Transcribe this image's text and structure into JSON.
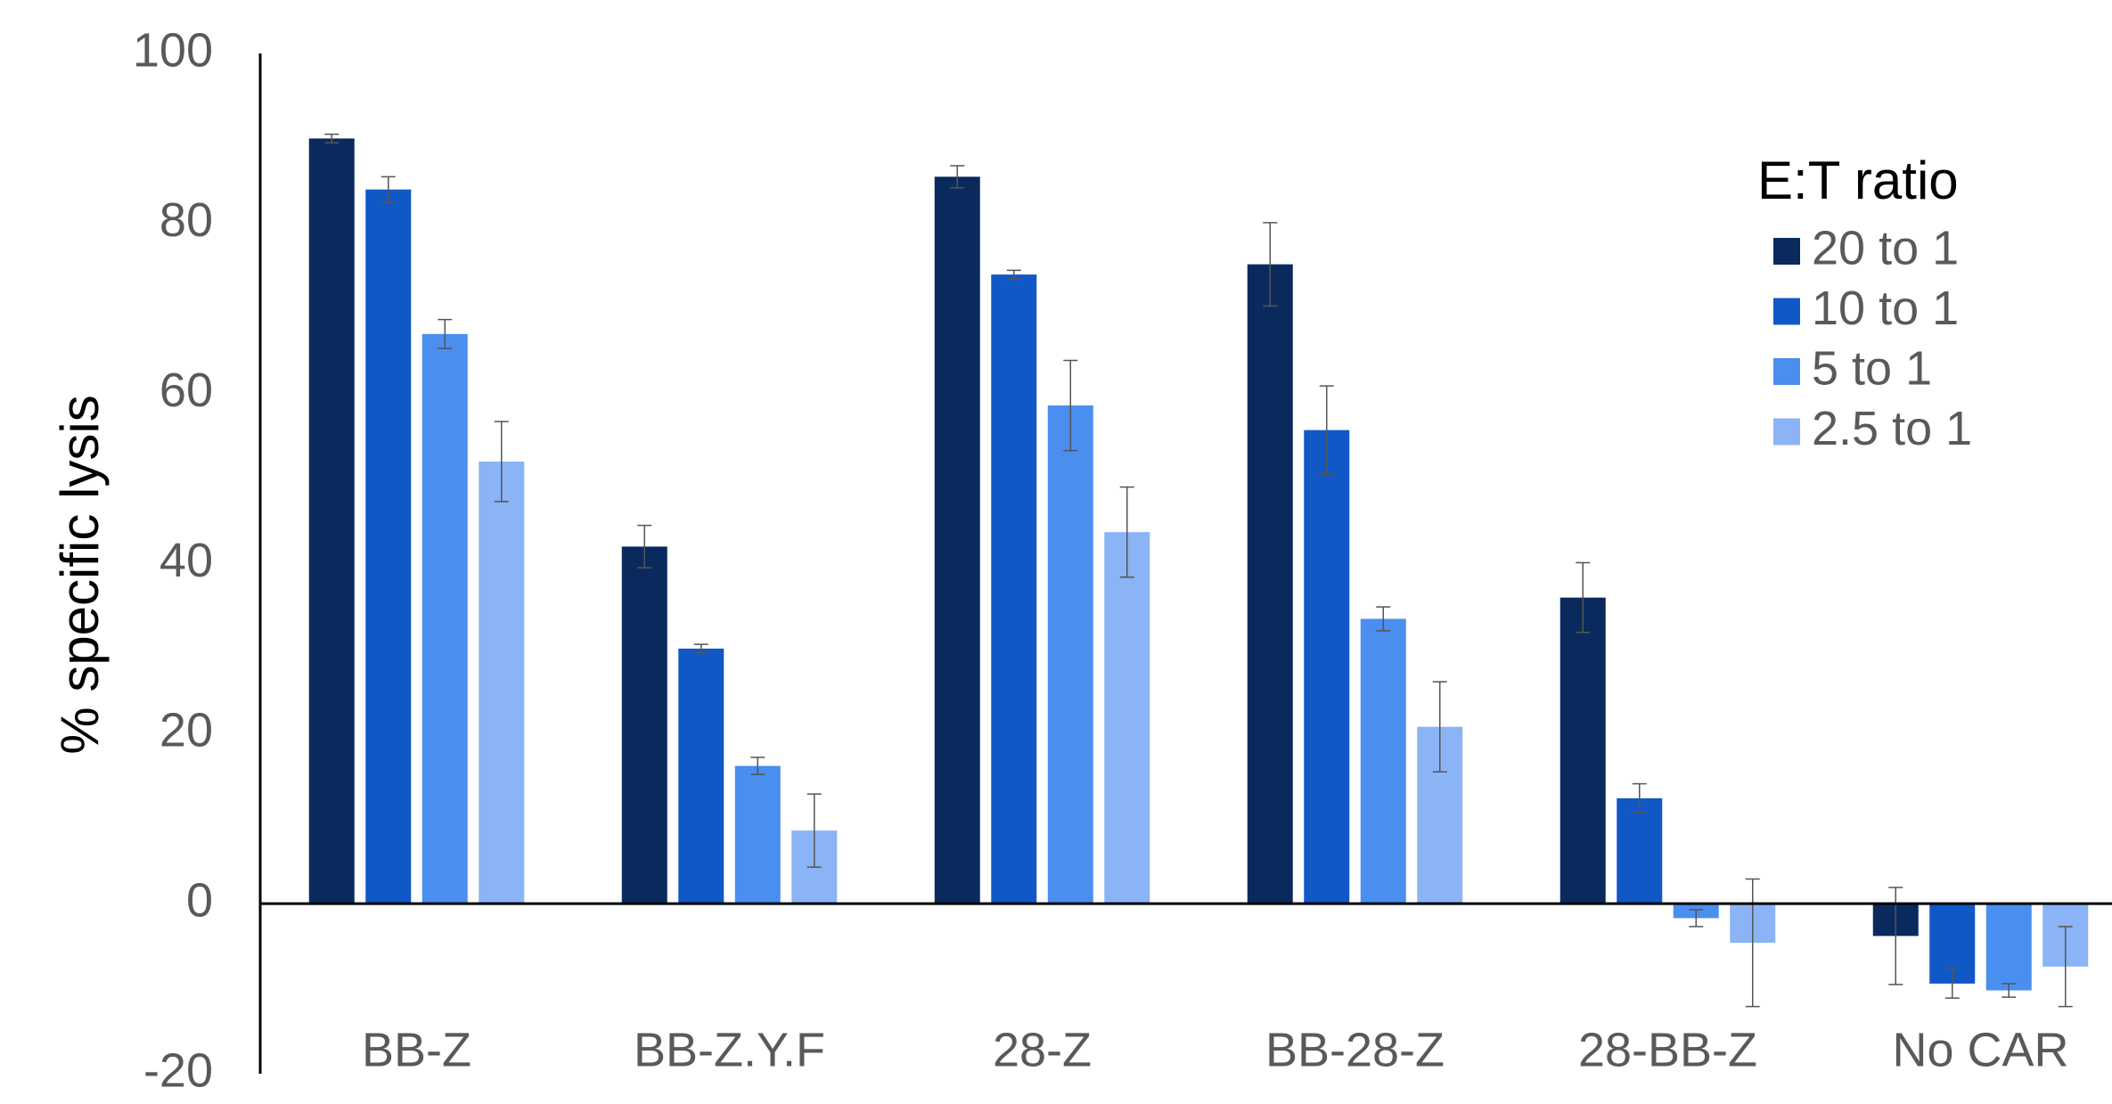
{
  "chart_data": {
    "type": "bar",
    "y_label": "% specific  lysis",
    "legend_title": "E:T ratio",
    "categories": [
      "BB-Z",
      "BB-Z.Y.F",
      "28-Z",
      "BB-28-Z",
      "28-BB-Z",
      "No CAR"
    ],
    "series": [
      {
        "name": "20 to 1",
        "color": "#0a2a5e",
        "values": [
          90,
          42,
          85.5,
          75.2,
          36,
          -3.8
        ],
        "errors": [
          0.5,
          2.5,
          1.3,
          4.9,
          4.1,
          5.7
        ]
      },
      {
        "name": "10 to 1",
        "color": "#1158c7",
        "values": [
          84,
          30,
          74,
          55.7,
          12.4,
          -9.4
        ],
        "errors": [
          1.5,
          0.5,
          0.5,
          5.2,
          1.7,
          1.7
        ]
      },
      {
        "name": "5 to 1",
        "color": "#4a8ef0",
        "values": [
          67,
          16.2,
          58.6,
          33.5,
          -1.7,
          -10.2
        ],
        "errors": [
          1.7,
          1,
          5.3,
          1.4,
          1,
          0.8
        ]
      },
      {
        "name": "2.5 to 1",
        "color": "#8ab4f5",
        "values": [
          52,
          8.6,
          43.7,
          20.8,
          -4.6,
          -7.4
        ],
        "errors": [
          4.7,
          4.3,
          5.3,
          5.3,
          7.5,
          4.7
        ]
      }
    ],
    "ylim": [
      -20,
      100
    ],
    "yticks": [
      -20,
      0,
      20,
      40,
      60,
      80,
      100
    ],
    "grid": false,
    "legend": "top-right"
  }
}
